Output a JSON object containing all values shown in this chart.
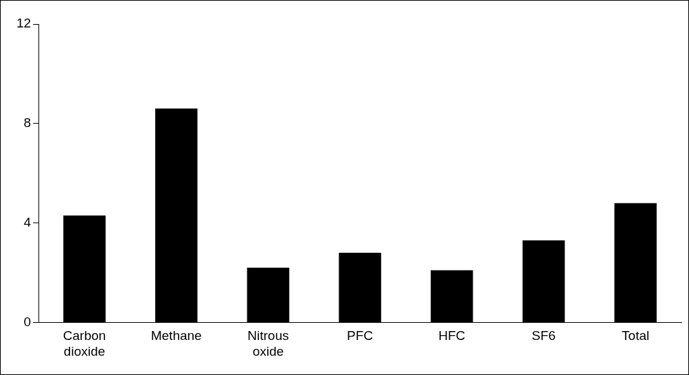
{
  "chart_data": {
    "type": "bar",
    "categories": [
      "Carbon dioxide",
      "Methane",
      "Nitrous oxide",
      "PFC",
      "HFC",
      "SF6",
      "Total"
    ],
    "values": [
      4.3,
      8.6,
      2.2,
      2.8,
      2.1,
      3.3,
      4.8
    ],
    "color": "#000000",
    "ylim": [
      0,
      12
    ],
    "yticks": [
      0,
      4,
      8,
      12
    ],
    "grid": false,
    "legend": false
  }
}
